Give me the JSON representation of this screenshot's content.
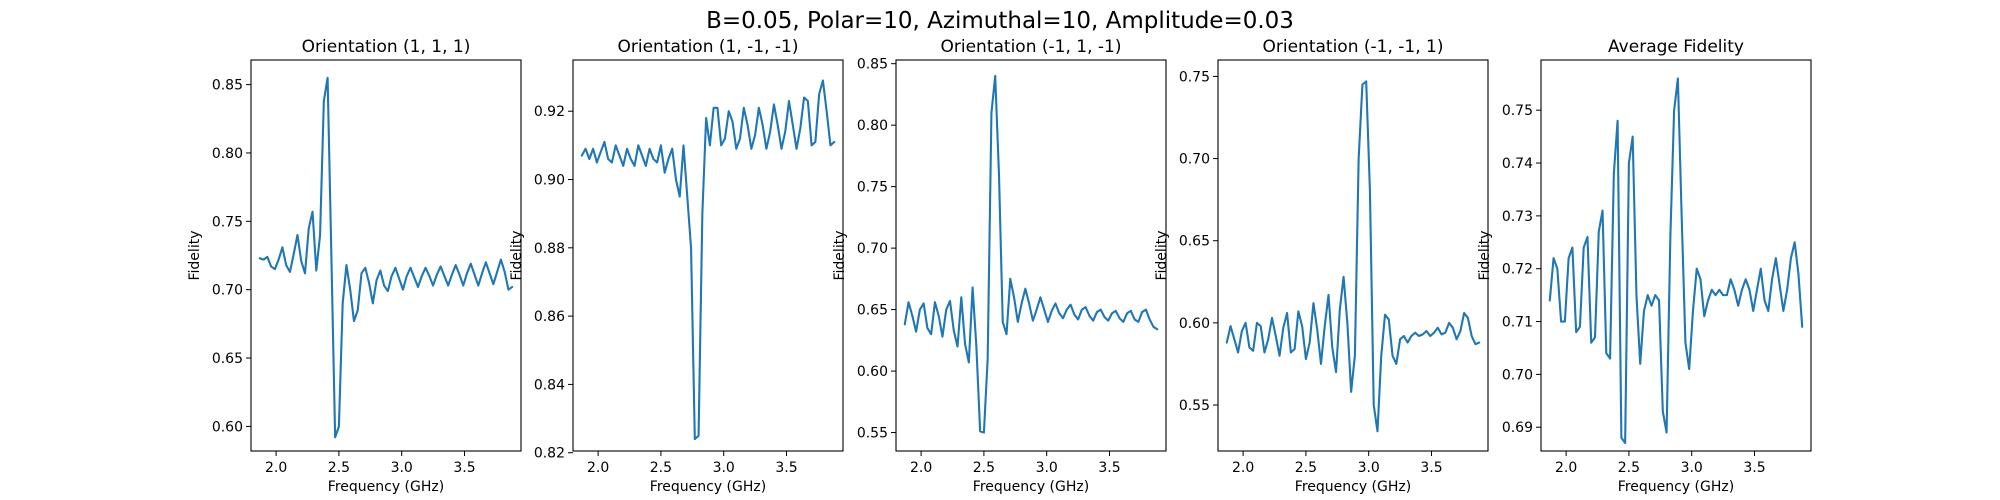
{
  "figure": {
    "suptitle": "B=0.05, Polar=10, Azimuthal=10, Amplitude=0.03"
  },
  "colors": {
    "series": "#1f77b4",
    "axes": "#000000",
    "background": "#ffffff"
  },
  "chart_data": [
    {
      "type": "line",
      "title": "Orientation (1, 1, 1)",
      "xlabel": "Frequency (GHz)",
      "ylabel": "Fidelity",
      "xlim": [
        1.8,
        3.95
      ],
      "ylim": [
        0.582,
        0.868
      ],
      "xticks": [
        "2.0",
        "2.5",
        "3.0",
        "3.5"
      ],
      "yticks": [
        "0.60",
        "0.65",
        "0.70",
        "0.75",
        "0.80",
        "0.85"
      ],
      "series": [
        {
          "x": [
            1.87,
            1.9,
            1.93,
            1.96,
            1.99,
            2.02,
            2.05,
            2.08,
            2.11,
            2.14,
            2.17,
            2.2,
            2.23,
            2.26,
            2.29,
            2.32,
            2.35,
            2.38,
            2.41,
            2.44,
            2.47,
            2.5,
            2.53,
            2.56,
            2.59,
            2.62,
            2.65,
            2.68,
            2.71,
            2.74,
            2.77,
            2.8,
            2.83,
            2.86,
            2.89,
            2.92,
            2.95,
            2.98,
            3.01,
            3.04,
            3.07,
            3.1,
            3.13,
            3.16,
            3.19,
            3.22,
            3.25,
            3.28,
            3.31,
            3.34,
            3.37,
            3.4,
            3.43,
            3.46,
            3.49,
            3.52,
            3.55,
            3.58,
            3.61,
            3.64,
            3.67,
            3.7,
            3.73,
            3.76,
            3.79,
            3.82,
            3.85,
            3.88
          ],
          "y": [
            0.723,
            0.722,
            0.724,
            0.717,
            0.715,
            0.722,
            0.731,
            0.718,
            0.713,
            0.726,
            0.74,
            0.721,
            0.712,
            0.745,
            0.757,
            0.714,
            0.74,
            0.838,
            0.855,
            0.725,
            0.592,
            0.6,
            0.69,
            0.718,
            0.7,
            0.677,
            0.685,
            0.712,
            0.716,
            0.705,
            0.69,
            0.707,
            0.714,
            0.703,
            0.699,
            0.71,
            0.716,
            0.708,
            0.7,
            0.71,
            0.716,
            0.709,
            0.702,
            0.71,
            0.716,
            0.71,
            0.703,
            0.711,
            0.717,
            0.71,
            0.703,
            0.711,
            0.718,
            0.711,
            0.703,
            0.712,
            0.719,
            0.711,
            0.703,
            0.712,
            0.72,
            0.712,
            0.704,
            0.713,
            0.722,
            0.713,
            0.7,
            0.702
          ]
        }
      ]
    },
    {
      "type": "line",
      "title": "Orientation (1, -1, -1)",
      "xlabel": "Frequency (GHz)",
      "ylabel": "Fidelity",
      "xlim": [
        1.8,
        3.95
      ],
      "ylim": [
        0.8205,
        0.935
      ],
      "xticks": [
        "2.0",
        "2.5",
        "3.0",
        "3.5"
      ],
      "yticks": [
        "0.82",
        "0.84",
        "0.86",
        "0.88",
        "0.90",
        "0.92"
      ],
      "series": [
        {
          "x": [
            1.87,
            1.9,
            1.93,
            1.96,
            1.99,
            2.02,
            2.05,
            2.08,
            2.11,
            2.14,
            2.17,
            2.2,
            2.23,
            2.26,
            2.29,
            2.32,
            2.35,
            2.38,
            2.41,
            2.44,
            2.47,
            2.5,
            2.53,
            2.56,
            2.59,
            2.62,
            2.65,
            2.68,
            2.71,
            2.74,
            2.77,
            2.8,
            2.83,
            2.86,
            2.89,
            2.92,
            2.95,
            2.98,
            3.01,
            3.04,
            3.07,
            3.1,
            3.13,
            3.16,
            3.19,
            3.22,
            3.25,
            3.28,
            3.31,
            3.34,
            3.37,
            3.4,
            3.43,
            3.46,
            3.49,
            3.52,
            3.55,
            3.58,
            3.61,
            3.64,
            3.67,
            3.7,
            3.73,
            3.76,
            3.79,
            3.82,
            3.85,
            3.88
          ],
          "y": [
            0.907,
            0.909,
            0.906,
            0.909,
            0.905,
            0.908,
            0.911,
            0.906,
            0.905,
            0.91,
            0.907,
            0.904,
            0.909,
            0.906,
            0.904,
            0.91,
            0.907,
            0.904,
            0.909,
            0.906,
            0.905,
            0.91,
            0.902,
            0.906,
            0.909,
            0.9,
            0.895,
            0.91,
            0.895,
            0.88,
            0.824,
            0.825,
            0.89,
            0.918,
            0.91,
            0.921,
            0.921,
            0.91,
            0.912,
            0.92,
            0.917,
            0.909,
            0.912,
            0.921,
            0.916,
            0.909,
            0.913,
            0.921,
            0.916,
            0.909,
            0.914,
            0.922,
            0.916,
            0.909,
            0.914,
            0.923,
            0.916,
            0.909,
            0.915,
            0.924,
            0.923,
            0.91,
            0.911,
            0.925,
            0.929,
            0.92,
            0.91,
            0.911
          ]
        }
      ]
    },
    {
      "type": "line",
      "title": "Orientation (-1, 1, -1)",
      "xlabel": "Frequency (GHz)",
      "ylabel": "Fidelity",
      "xlim": [
        1.8,
        3.95
      ],
      "ylim": [
        0.535,
        0.853
      ],
      "xticks": [
        "2.0",
        "2.5",
        "3.0",
        "3.5"
      ],
      "yticks": [
        "0.55",
        "0.60",
        "0.65",
        "0.70",
        "0.75",
        "0.80",
        "0.85"
      ],
      "series": [
        {
          "x": [
            1.87,
            1.9,
            1.93,
            1.96,
            1.99,
            2.02,
            2.05,
            2.08,
            2.11,
            2.14,
            2.17,
            2.2,
            2.23,
            2.26,
            2.29,
            2.32,
            2.35,
            2.38,
            2.41,
            2.44,
            2.47,
            2.5,
            2.53,
            2.56,
            2.59,
            2.62,
            2.65,
            2.68,
            2.71,
            2.74,
            2.77,
            2.8,
            2.83,
            2.86,
            2.89,
            2.92,
            2.95,
            2.98,
            3.01,
            3.04,
            3.07,
            3.1,
            3.13,
            3.16,
            3.19,
            3.22,
            3.25,
            3.28,
            3.31,
            3.34,
            3.37,
            3.4,
            3.43,
            3.46,
            3.49,
            3.52,
            3.55,
            3.58,
            3.61,
            3.64,
            3.67,
            3.7,
            3.73,
            3.76,
            3.79,
            3.82,
            3.85,
            3.88
          ],
          "y": [
            0.638,
            0.656,
            0.645,
            0.632,
            0.65,
            0.655,
            0.635,
            0.63,
            0.656,
            0.645,
            0.628,
            0.65,
            0.657,
            0.633,
            0.62,
            0.66,
            0.622,
            0.607,
            0.668,
            0.62,
            0.551,
            0.55,
            0.61,
            0.81,
            0.84,
            0.76,
            0.64,
            0.63,
            0.675,
            0.66,
            0.64,
            0.655,
            0.667,
            0.655,
            0.641,
            0.65,
            0.66,
            0.65,
            0.64,
            0.649,
            0.655,
            0.647,
            0.643,
            0.65,
            0.654,
            0.646,
            0.642,
            0.65,
            0.652,
            0.645,
            0.641,
            0.648,
            0.65,
            0.644,
            0.641,
            0.647,
            0.649,
            0.643,
            0.64,
            0.647,
            0.649,
            0.642,
            0.64,
            0.648,
            0.65,
            0.642,
            0.636,
            0.634
          ]
        }
      ]
    },
    {
      "type": "line",
      "title": "Orientation (-1, -1, 1)",
      "xlabel": "Frequency (GHz)",
      "ylabel": "Fidelity",
      "xlim": [
        1.8,
        3.95
      ],
      "ylim": [
        0.522,
        0.76
      ],
      "xticks": [
        "2.0",
        "2.5",
        "3.0",
        "3.5"
      ],
      "yticks": [
        "0.55",
        "0.60",
        "0.65",
        "0.70",
        "0.75"
      ],
      "series": [
        {
          "x": [
            1.87,
            1.9,
            1.93,
            1.96,
            1.99,
            2.02,
            2.05,
            2.08,
            2.11,
            2.14,
            2.17,
            2.2,
            2.23,
            2.26,
            2.29,
            2.32,
            2.35,
            2.38,
            2.41,
            2.44,
            2.47,
            2.5,
            2.53,
            2.56,
            2.59,
            2.62,
            2.65,
            2.68,
            2.71,
            2.74,
            2.77,
            2.8,
            2.83,
            2.86,
            2.89,
            2.92,
            2.95,
            2.98,
            3.01,
            3.04,
            3.07,
            3.1,
            3.13,
            3.16,
            3.19,
            3.22,
            3.25,
            3.28,
            3.31,
            3.34,
            3.37,
            3.4,
            3.43,
            3.46,
            3.49,
            3.52,
            3.55,
            3.58,
            3.61,
            3.64,
            3.67,
            3.7,
            3.73,
            3.76,
            3.79,
            3.82,
            3.85,
            3.88
          ],
          "y": [
            0.588,
            0.598,
            0.59,
            0.582,
            0.595,
            0.6,
            0.585,
            0.583,
            0.6,
            0.598,
            0.582,
            0.59,
            0.603,
            0.592,
            0.58,
            0.597,
            0.606,
            0.582,
            0.584,
            0.607,
            0.598,
            0.578,
            0.588,
            0.612,
            0.596,
            0.575,
            0.598,
            0.617,
            0.585,
            0.57,
            0.608,
            0.628,
            0.6,
            0.558,
            0.58,
            0.7,
            0.745,
            0.747,
            0.68,
            0.55,
            0.534,
            0.58,
            0.605,
            0.602,
            0.58,
            0.575,
            0.59,
            0.592,
            0.588,
            0.592,
            0.594,
            0.592,
            0.593,
            0.595,
            0.592,
            0.594,
            0.597,
            0.593,
            0.594,
            0.6,
            0.597,
            0.59,
            0.595,
            0.606,
            0.603,
            0.592,
            0.587,
            0.588
          ]
        }
      ]
    },
    {
      "type": "line",
      "title": "Average Fidelity",
      "xlabel": "Frequency (GHz)",
      "ylabel": "Fidelity",
      "xlim": [
        1.8,
        3.95
      ],
      "ylim": [
        0.6855,
        0.7595
      ],
      "xticks": [
        "2.0",
        "2.5",
        "3.0",
        "3.5"
      ],
      "yticks": [
        "0.69",
        "0.70",
        "0.71",
        "0.72",
        "0.73",
        "0.74",
        "0.75"
      ],
      "series": [
        {
          "x": [
            1.87,
            1.9,
            1.93,
            1.96,
            1.99,
            2.02,
            2.05,
            2.08,
            2.11,
            2.14,
            2.17,
            2.2,
            2.23,
            2.26,
            2.29,
            2.32,
            2.35,
            2.38,
            2.41,
            2.44,
            2.47,
            2.5,
            2.53,
            2.56,
            2.59,
            2.62,
            2.65,
            2.68,
            2.71,
            2.74,
            2.77,
            2.8,
            2.83,
            2.86,
            2.89,
            2.92,
            2.95,
            2.98,
            3.01,
            3.04,
            3.07,
            3.1,
            3.13,
            3.16,
            3.19,
            3.22,
            3.25,
            3.28,
            3.31,
            3.34,
            3.37,
            3.4,
            3.43,
            3.46,
            3.49,
            3.52,
            3.55,
            3.58,
            3.61,
            3.64,
            3.67,
            3.7,
            3.73,
            3.76,
            3.79,
            3.82,
            3.85,
            3.88
          ],
          "y": [
            0.714,
            0.722,
            0.72,
            0.71,
            0.71,
            0.722,
            0.724,
            0.708,
            0.709,
            0.724,
            0.726,
            0.706,
            0.707,
            0.727,
            0.731,
            0.704,
            0.703,
            0.738,
            0.748,
            0.688,
            0.687,
            0.74,
            0.745,
            0.715,
            0.702,
            0.712,
            0.715,
            0.713,
            0.715,
            0.714,
            0.693,
            0.689,
            0.726,
            0.75,
            0.756,
            0.73,
            0.706,
            0.701,
            0.712,
            0.72,
            0.718,
            0.711,
            0.714,
            0.716,
            0.715,
            0.716,
            0.715,
            0.715,
            0.718,
            0.716,
            0.713,
            0.716,
            0.718,
            0.716,
            0.712,
            0.716,
            0.72,
            0.714,
            0.712,
            0.718,
            0.722,
            0.717,
            0.712,
            0.716,
            0.722,
            0.725,
            0.719,
            0.709
          ]
        }
      ]
    }
  ]
}
